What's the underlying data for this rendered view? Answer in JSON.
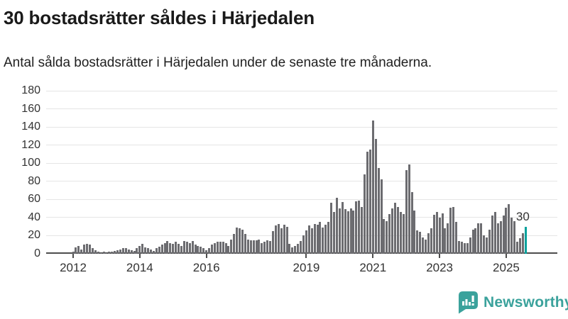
{
  "header": {
    "title": "30 bostadsrätter såldes i Härjedalen",
    "subtitle": "Antal sålda bostadsrätter i Härjedalen under de senaste tre månaderna."
  },
  "chart_data": {
    "type": "bar",
    "title": "30 bostadsrätter såldes i Härjedalen",
    "subtitle": "Antal sålda bostadsrätter i Härjedalen under de senaste tre månaderna.",
    "xlabel": "",
    "ylabel": "",
    "ylim": [
      0,
      180
    ],
    "grid": true,
    "y_ticks": [
      0,
      20,
      40,
      60,
      80,
      100,
      120,
      140,
      160,
      180
    ],
    "x_tick_labels": [
      "2012",
      "2014",
      "2016",
      "2019",
      "2021",
      "2023",
      "2025"
    ],
    "x_tick_month_offsets": [
      0,
      24,
      48,
      84,
      108,
      132,
      156
    ],
    "start_month": "2012-01",
    "frequency": "monthly-rolling-3-months",
    "bar_color": "#6c6c70",
    "highlight_color": "#00a19c",
    "values": [
      2,
      7,
      9,
      5,
      10,
      11,
      10,
      6,
      4,
      2,
      1,
      2,
      1,
      2,
      2,
      3,
      4,
      5,
      6,
      6,
      5,
      4,
      3,
      6,
      9,
      11,
      7,
      6,
      5,
      3,
      6,
      8,
      10,
      12,
      14,
      12,
      11,
      13,
      11,
      9,
      14,
      13,
      12,
      14,
      10,
      9,
      8,
      6,
      4,
      6,
      10,
      12,
      13,
      13,
      13,
      12,
      9,
      16,
      22,
      29,
      28,
      27,
      22,
      16,
      15,
      15,
      15,
      16,
      12,
      13,
      15,
      14,
      25,
      31,
      33,
      28,
      32,
      30,
      11,
      7,
      9,
      11,
      14,
      20,
      26,
      31,
      28,
      33,
      32,
      35,
      29,
      32,
      35,
      56,
      46,
      62,
      50,
      57,
      49,
      47,
      50,
      48,
      58,
      59,
      52,
      88,
      113,
      115,
      147,
      127,
      95,
      82,
      38,
      36,
      44,
      50,
      56,
      52,
      46,
      44,
      92,
      99,
      68,
      48,
      26,
      24,
      18,
      16,
      23,
      28,
      43,
      46,
      40,
      45,
      28,
      34,
      51,
      52,
      35,
      14,
      13,
      12,
      12,
      18,
      27,
      28,
      34,
      34,
      20,
      18,
      27,
      42,
      46,
      34,
      36,
      42,
      51,
      55,
      40,
      36,
      13,
      17,
      23,
      30
    ],
    "highlight": {
      "index": 163,
      "value": 30,
      "label": "30"
    }
  },
  "branding": {
    "logo_text": "Newsworthy",
    "logo_color": "#3ba29c"
  }
}
